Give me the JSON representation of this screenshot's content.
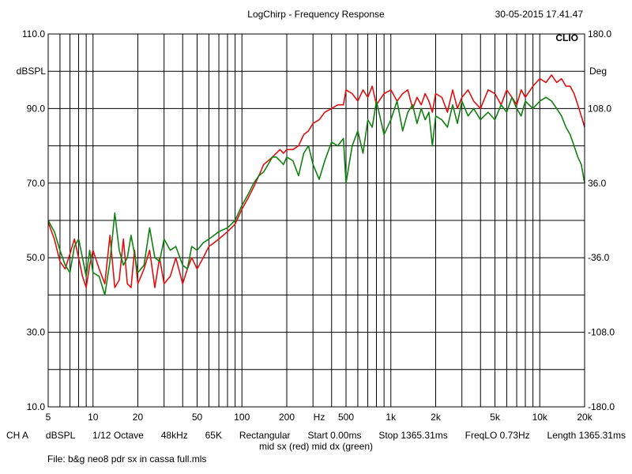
{
  "header": {
    "title": "LogChirp - Frequency Response",
    "timestamp": "30-05-2015 17.41.47",
    "brand": "CLIO"
  },
  "info": {
    "line1": [
      "CH A",
      "dBSPL",
      "1/12 Octave",
      "48kHz",
      "65K",
      "Rectangular",
      "Start 0.00ms",
      "Stop 1365.31ms",
      "FreqLO 0.73Hz",
      "Length 1365.31ms"
    ],
    "legend": "mid sx (red) mid dx (green)",
    "file": "File: b&g neo8 pdr sx in cassa full.mls"
  },
  "colors": {
    "red": "#e01010",
    "green": "#108010",
    "grid": "#000000"
  },
  "chart_data": {
    "type": "line",
    "x_scale": "log",
    "xlim": [
      5,
      20000
    ],
    "ylim": [
      10,
      110
    ],
    "y2lim": [
      -180,
      180
    ],
    "ylabel": "dBSPL",
    "y2label": "Deg",
    "xlabel": "Hz",
    "grid": true,
    "x_ticks": [
      {
        "v": 5,
        "label": "5"
      },
      {
        "v": 10,
        "label": "10"
      },
      {
        "v": 20,
        "label": "20"
      },
      {
        "v": 50,
        "label": "50"
      },
      {
        "v": 100,
        "label": "100"
      },
      {
        "v": 200,
        "label": "200"
      },
      {
        "v": 500,
        "label": "500"
      },
      {
        "v": 1000,
        "label": "1k"
      },
      {
        "v": 2000,
        "label": "2k"
      },
      {
        "v": 5000,
        "label": "5k"
      },
      {
        "v": 10000,
        "label": "10k"
      },
      {
        "v": 20000,
        "label": "20k"
      }
    ],
    "y_ticks": [
      {
        "v": 110,
        "label": "110.0"
      },
      {
        "v": 90,
        "label": "90.0"
      },
      {
        "v": 70,
        "label": "70.0"
      },
      {
        "v": 50,
        "label": "50.0"
      },
      {
        "v": 30,
        "label": "30.0"
      },
      {
        "v": 10,
        "label": "10.0"
      }
    ],
    "y2_ticks": [
      {
        "v": 180,
        "label": "180.0"
      },
      {
        "v": 108,
        "label": "108.0"
      },
      {
        "v": 36,
        "label": "36.0"
      },
      {
        "v": -36,
        "label": "-36.0"
      },
      {
        "v": -108,
        "label": "-108.0"
      },
      {
        "v": -180,
        "label": "-180.0"
      }
    ],
    "series": [
      {
        "color": "red",
        "x": [
          5,
          5.5,
          6,
          6.5,
          7,
          7.5,
          8,
          8.5,
          9,
          9.5,
          10,
          11,
          12,
          13,
          14,
          15,
          16,
          17,
          18,
          19,
          20,
          22,
          24,
          26,
          28,
          30,
          33,
          36,
          40,
          43,
          46,
          50,
          55,
          60,
          65,
          70,
          80,
          90,
          100,
          110,
          120,
          130,
          140,
          150,
          160,
          170,
          180,
          190,
          200,
          220,
          240,
          260,
          280,
          300,
          330,
          360,
          400,
          440,
          480,
          500,
          550,
          600,
          650,
          700,
          750,
          800,
          900,
          1000,
          1100,
          1200,
          1300,
          1400,
          1500,
          1600,
          1700,
          1800,
          1900,
          2000,
          2200,
          2400,
          2600,
          2800,
          3000,
          3300,
          3600,
          4000,
          4500,
          5000,
          5500,
          6000,
          6500,
          7000,
          7500,
          8000,
          9000,
          10000,
          11000,
          12000,
          13000,
          14000,
          15000,
          16000,
          17000,
          18000,
          19000,
          20000
        ],
        "y": [
          59.5,
          55,
          49,
          47,
          51,
          55,
          50,
          45,
          42,
          48,
          52,
          47,
          43,
          56,
          42,
          44,
          55,
          43,
          42,
          52,
          43,
          47,
          52,
          42,
          50,
          43,
          45,
          50,
          43,
          47,
          50,
          47,
          50,
          53,
          54,
          55,
          57,
          59,
          63,
          66,
          69,
          72,
          75,
          76,
          77,
          78,
          79,
          78,
          79,
          79,
          80,
          83,
          84,
          86,
          87,
          89,
          90,
          91,
          91,
          95,
          94,
          92,
          95,
          93,
          96,
          91,
          94,
          95,
          92,
          94,
          95,
          90,
          93,
          91,
          94,
          92,
          89,
          94,
          93,
          89,
          95,
          90,
          93,
          95,
          92,
          90,
          95,
          94,
          91,
          95,
          93,
          91,
          95,
          93,
          96,
          98,
          97,
          99,
          97,
          98,
          96,
          96,
          94,
          91,
          88,
          85
        ]
      },
      {
        "color": "green",
        "x": [
          5,
          5.5,
          6,
          6.5,
          7,
          7.5,
          8,
          8.5,
          9,
          9.5,
          10,
          11,
          12,
          13,
          14,
          15,
          16,
          17,
          18,
          19,
          20,
          22,
          24,
          26,
          28,
          30,
          33,
          36,
          40,
          43,
          46,
          50,
          55,
          60,
          65,
          70,
          80,
          90,
          100,
          110,
          120,
          130,
          140,
          150,
          160,
          170,
          180,
          190,
          200,
          220,
          240,
          260,
          280,
          300,
          330,
          360,
          400,
          440,
          480,
          500,
          550,
          600,
          650,
          700,
          750,
          800,
          900,
          1000,
          1100,
          1200,
          1300,
          1400,
          1500,
          1600,
          1700,
          1800,
          1900,
          2000,
          2200,
          2400,
          2600,
          2800,
          3000,
          3300,
          3600,
          4000,
          4500,
          5000,
          5500,
          6000,
          6500,
          7000,
          7500,
          8000,
          9000,
          10000,
          11000,
          12000,
          13000,
          14000,
          15000,
          16000,
          17000,
          18000,
          19000,
          20000
        ],
        "y": [
          60,
          57,
          52,
          48,
          46,
          53,
          55,
          50,
          45,
          52,
          46,
          45,
          40,
          49,
          62,
          52,
          48,
          50,
          56,
          51,
          46,
          48,
          58,
          50,
          49,
          55,
          52,
          53,
          48,
          47,
          53,
          52,
          54,
          55,
          56,
          57,
          58,
          60,
          64,
          67,
          70,
          72,
          73,
          75,
          77,
          77,
          76,
          75,
          77,
          76,
          72,
          78,
          80,
          75,
          71,
          76,
          81,
          80,
          82,
          70,
          80,
          84,
          78,
          87,
          85,
          92,
          83,
          87,
          92,
          84,
          89,
          91,
          86,
          90,
          87,
          89,
          80,
          88,
          87,
          85,
          91,
          86,
          92,
          88,
          90,
          87,
          89,
          87,
          91,
          89,
          93,
          90,
          88,
          92,
          90,
          92,
          93,
          92,
          90,
          88,
          85,
          83,
          80,
          77,
          75,
          70
        ]
      }
    ]
  }
}
